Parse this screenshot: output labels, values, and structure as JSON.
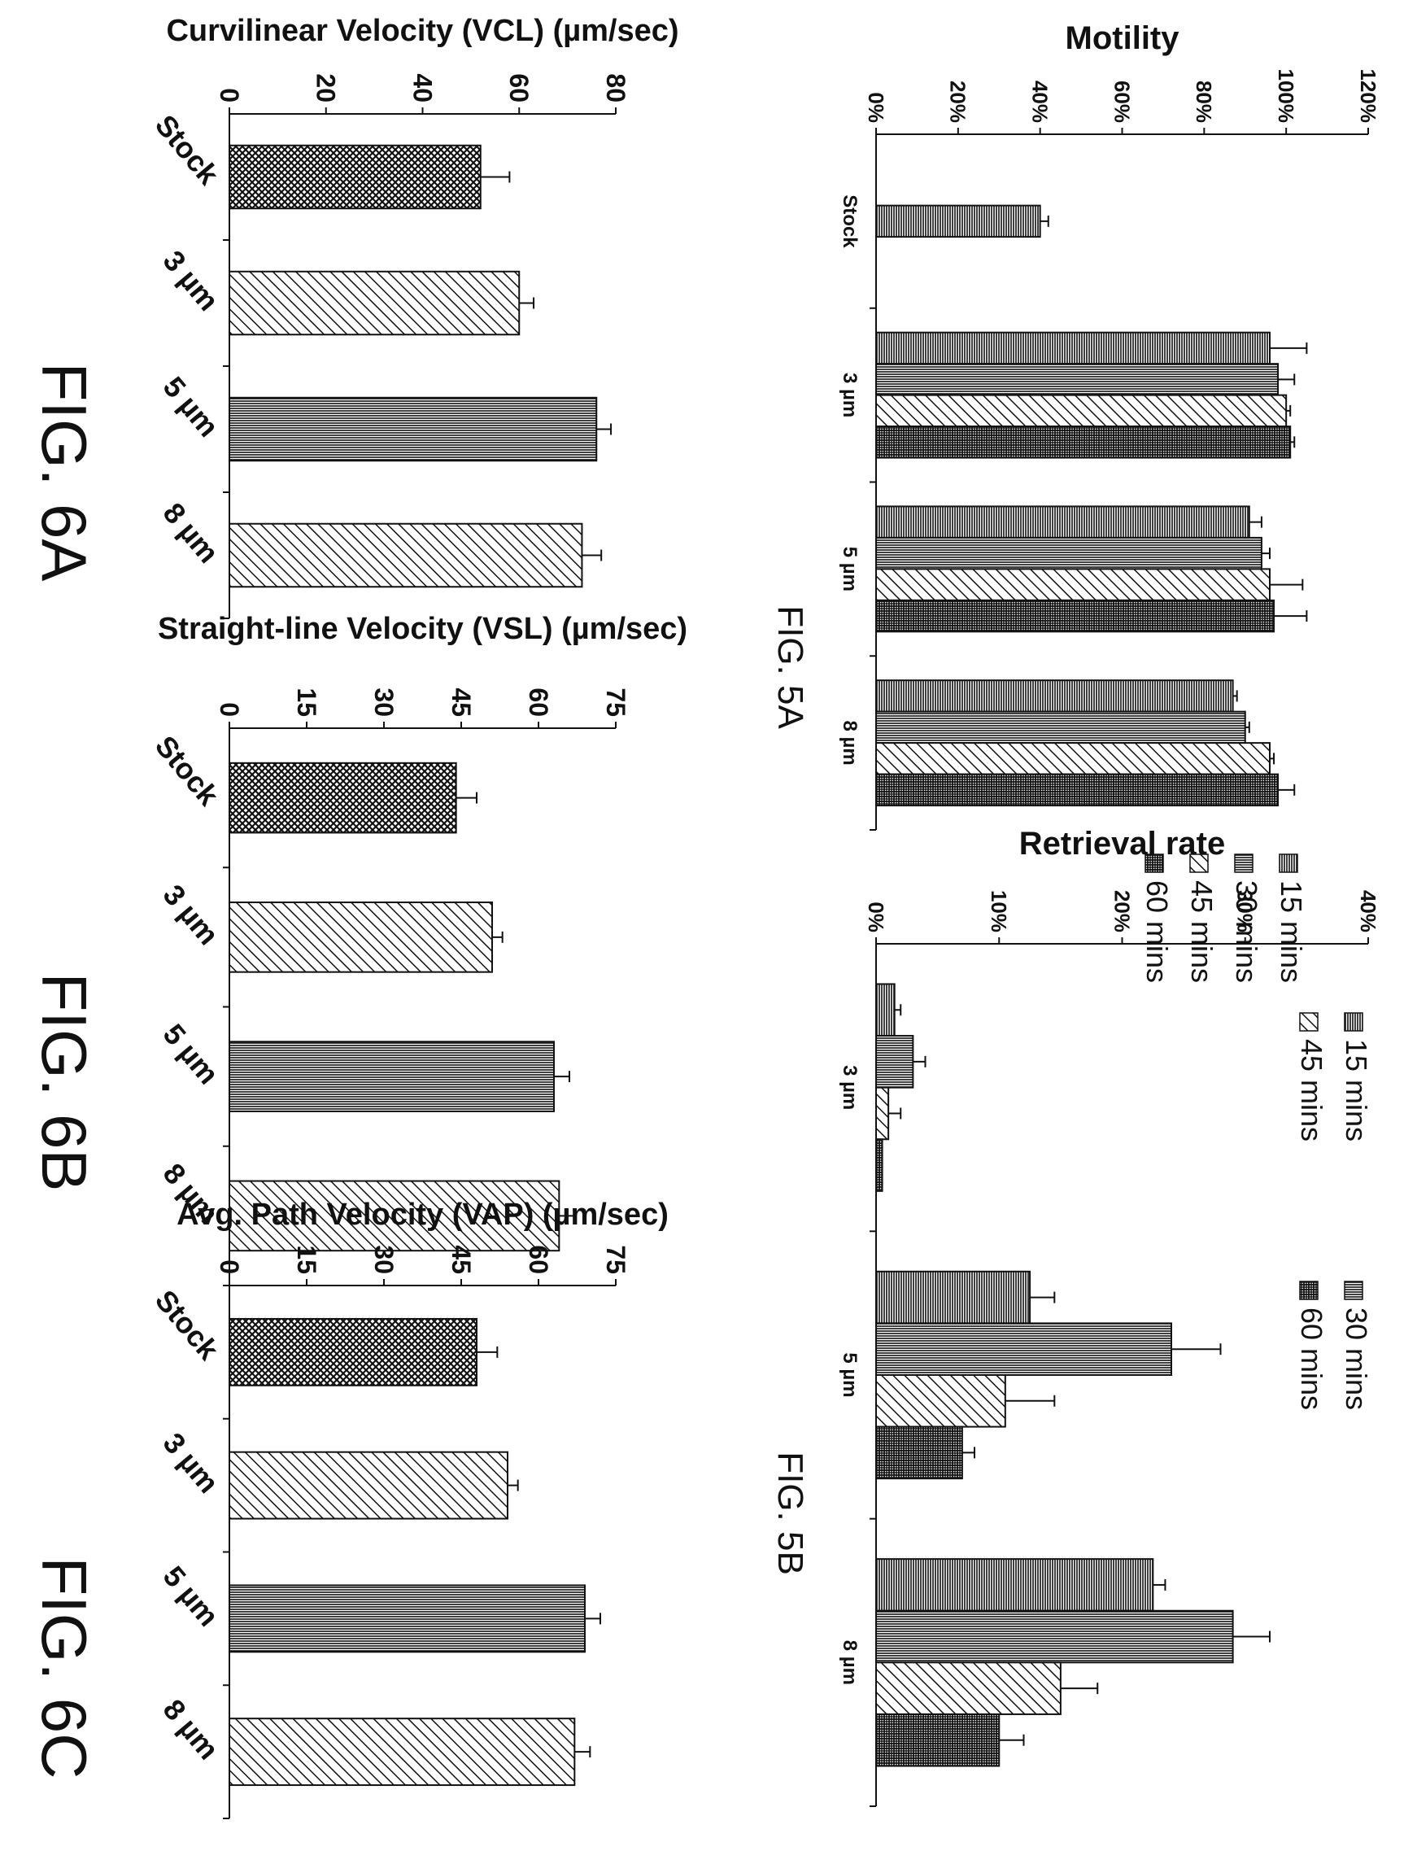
{
  "page": {
    "orientation": "rotated-90-clockwise"
  },
  "colors": {
    "ink": "#111111",
    "background": "#ffffff"
  },
  "chart_data": [
    {
      "id": "fig5a",
      "type": "bar",
      "figure_label": "FIG. 5A",
      "ylabel": "Motility",
      "xlabel": "",
      "ylim": [
        0,
        120
      ],
      "y_ticks": [
        "0%",
        "20%",
        "40%",
        "60%",
        "80%",
        "100%",
        "120%"
      ],
      "grid": false,
      "legend": "right",
      "categories": [
        "Stock",
        "3 µm",
        "5 µm",
        "8 µm"
      ],
      "series": [
        {
          "name": "15 mins",
          "pattern": "hlines",
          "values": [
            40,
            96,
            91,
            87
          ],
          "errors": [
            2,
            9,
            3,
            1
          ]
        },
        {
          "name": "30 mins",
          "pattern": "vlines",
          "values": [
            null,
            98,
            94,
            90
          ],
          "errors": [
            null,
            4,
            2,
            1
          ]
        },
        {
          "name": "45 mins",
          "pattern": "diag",
          "values": [
            null,
            100,
            96,
            96
          ],
          "errors": [
            null,
            1,
            8,
            1
          ]
        },
        {
          "name": "60 mins",
          "pattern": "grid",
          "values": [
            null,
            101,
            97,
            98
          ],
          "errors": [
            null,
            1,
            8,
            4
          ]
        }
      ]
    },
    {
      "id": "fig5b",
      "type": "bar",
      "figure_label": "FIG. 5B",
      "ylabel": "Retrieval rate",
      "xlabel": "",
      "ylim": [
        0,
        40
      ],
      "y_ticks": [
        "0%",
        "10%",
        "20%",
        "30%",
        "40%"
      ],
      "grid": false,
      "legend": "top",
      "categories": [
        "3 µm",
        "5 µm",
        "8 µm"
      ],
      "series": [
        {
          "name": "15 mins",
          "pattern": "hlines",
          "values": [
            1.5,
            12.5,
            22.5
          ],
          "errors": [
            0.5,
            2,
            1
          ]
        },
        {
          "name": "30 mins",
          "pattern": "vlines",
          "values": [
            3,
            24,
            29
          ],
          "errors": [
            1,
            4,
            3
          ]
        },
        {
          "name": "45 mins",
          "pattern": "diag",
          "values": [
            1,
            10.5,
            15
          ],
          "errors": [
            1,
            4,
            3
          ]
        },
        {
          "name": "60 mins",
          "pattern": "grid",
          "values": [
            0.5,
            7,
            10
          ],
          "errors": [
            0,
            1,
            2
          ]
        }
      ]
    },
    {
      "id": "fig6a",
      "type": "bar",
      "figure_label": "FIG. 6A",
      "ylabel": "Curvilinear Velocity (VCL) (µm/sec)",
      "xlabel": "",
      "ylim": [
        0,
        80
      ],
      "y_ticks": [
        "0",
        "20",
        "40",
        "60",
        "80"
      ],
      "grid": false,
      "categories": [
        "Stock",
        "3 µm",
        "5 µm",
        "8 µm"
      ],
      "bar_patterns": [
        "cross",
        "diag",
        "vlines",
        "diag"
      ],
      "values": [
        52,
        60,
        76,
        73
      ],
      "errors": [
        6,
        3,
        3,
        4
      ]
    },
    {
      "id": "fig6b",
      "type": "bar",
      "figure_label": "FIG. 6B",
      "ylabel": "Straight-line Velocity (VSL) (µm/sec)",
      "xlabel": "",
      "ylim": [
        0,
        75
      ],
      "y_ticks": [
        "0",
        "15",
        "30",
        "45",
        "60",
        "75"
      ],
      "grid": false,
      "categories": [
        "Stock",
        "3 µm",
        "5 µm",
        "8 µm"
      ],
      "bar_patterns": [
        "cross",
        "diag",
        "vlines",
        "diag"
      ],
      "values": [
        44,
        51,
        63,
        64
      ],
      "errors": [
        4,
        2,
        3,
        3
      ]
    },
    {
      "id": "fig6c",
      "type": "bar",
      "figure_label": "FIG. 6C",
      "ylabel": "Avg. Path Velocity (VAP) (µm/sec)",
      "xlabel": "",
      "ylim": [
        0,
        75
      ],
      "y_ticks": [
        "0",
        "15",
        "30",
        "45",
        "60",
        "75"
      ],
      "grid": false,
      "categories": [
        "Stock",
        "3 µm",
        "5 µm",
        "8 µm"
      ],
      "bar_patterns": [
        "cross",
        "diag",
        "vlines",
        "diag"
      ],
      "values": [
        48,
        54,
        69,
        67
      ],
      "errors": [
        4,
        2,
        3,
        3
      ]
    }
  ]
}
